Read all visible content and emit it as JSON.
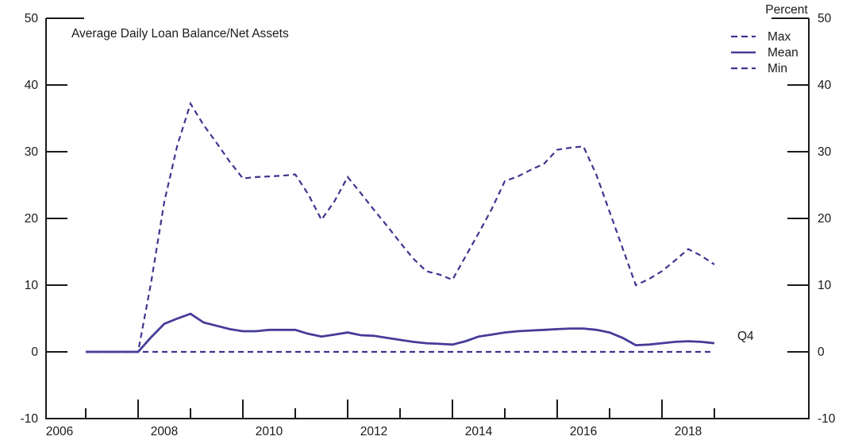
{
  "chart_data": {
    "type": "line",
    "title": "Average Daily Loan Balance/Net Assets",
    "unit_label": "Percent",
    "last_observation_label": "Q4",
    "x_frequency": "quarterly",
    "grid": false,
    "legend_position": "top-right",
    "axis_color": "#1a1a1a",
    "ylim": [
      -10,
      50
    ],
    "yticks": [
      -10,
      0,
      10,
      20,
      30,
      40,
      50
    ],
    "x_minor_tick_years": [
      2007,
      2009,
      2011,
      2013,
      2015,
      2017,
      2019
    ],
    "x_major_tick_years": [
      2008,
      2010,
      2012,
      2014,
      2016,
      2018
    ],
    "x_labels": [
      "2006",
      "2008",
      "2010",
      "2012",
      "2014",
      "2016",
      "2018"
    ],
    "quarters": [
      "2006Q4",
      "2007Q1",
      "2007Q2",
      "2007Q3",
      "2007Q4",
      "2008Q1",
      "2008Q2",
      "2008Q3",
      "2008Q4",
      "2009Q1",
      "2009Q2",
      "2009Q3",
      "2009Q4",
      "2010Q1",
      "2010Q2",
      "2010Q3",
      "2010Q4",
      "2011Q1",
      "2011Q2",
      "2011Q3",
      "2011Q4",
      "2012Q1",
      "2012Q2",
      "2012Q3",
      "2012Q4",
      "2013Q1",
      "2013Q2",
      "2013Q3",
      "2013Q4",
      "2014Q1",
      "2014Q2",
      "2014Q3",
      "2014Q4",
      "2015Q1",
      "2015Q2",
      "2015Q3",
      "2015Q4",
      "2016Q1",
      "2016Q2",
      "2016Q3",
      "2016Q4",
      "2017Q1",
      "2017Q2",
      "2017Q3",
      "2017Q4",
      "2018Q1",
      "2018Q2",
      "2018Q3",
      "2018Q4"
    ],
    "series": [
      {
        "name": "Max",
        "style": "dashed",
        "color": "#3f3590",
        "values": [
          0,
          0,
          0,
          0,
          0,
          10.5,
          22.5,
          31,
          37.2,
          34,
          31.3,
          28.5,
          26,
          26.2,
          26.3,
          26.4,
          26.6,
          23.6,
          19.8,
          22.6,
          26.2,
          23.8,
          21.3,
          18.9,
          16.4,
          14,
          12.1,
          11.6,
          10.8,
          14.3,
          17.8,
          21.4,
          25.6,
          26.3,
          27.3,
          28.2,
          30.3,
          30.6,
          30.8,
          26.5,
          21,
          15.5,
          10,
          10.9,
          12.1,
          13.7,
          15.4,
          14.4,
          13.1
        ]
      },
      {
        "name": "Mean",
        "style": "solid",
        "color": "#463c99",
        "values": [
          0,
          0,
          0,
          0,
          0,
          2.2,
          4.2,
          5,
          5.7,
          4.4,
          3.9,
          3.4,
          3.1,
          3.1,
          3.3,
          3.3,
          3.3,
          2.7,
          2.3,
          2.6,
          2.9,
          2.5,
          2.4,
          2.1,
          1.8,
          1.5,
          1.3,
          1.2,
          1.1,
          1.6,
          2.3,
          2.6,
          2.9,
          3.1,
          3.2,
          3.3,
          3.4,
          3.5,
          3.5,
          3.3,
          2.9,
          2.1,
          1,
          1.1,
          1.3,
          1.5,
          1.6,
          1.5,
          1.3
        ]
      },
      {
        "name": "Min",
        "style": "dashed",
        "color": "#3f3590",
        "values": [
          0,
          0,
          0,
          0,
          0,
          0,
          0,
          0,
          0,
          0,
          0,
          0,
          0,
          0,
          0,
          0,
          0,
          0,
          0,
          0,
          0,
          0,
          0,
          0,
          0,
          0,
          0,
          0,
          0,
          0,
          0,
          0,
          0,
          0,
          0,
          0,
          0,
          0,
          0,
          0,
          0,
          0,
          0,
          0,
          0,
          0,
          0,
          0,
          0
        ]
      }
    ]
  }
}
